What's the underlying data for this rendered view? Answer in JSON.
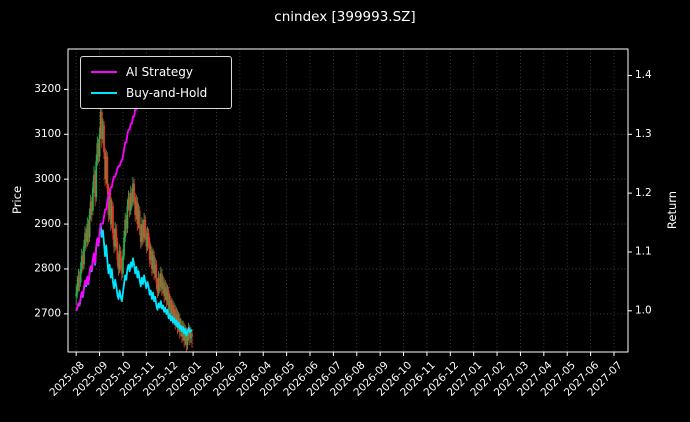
{
  "title": "cnindex [399993.SZ]",
  "axes": {
    "left_label": "Price",
    "right_label": "Return"
  },
  "legend": {
    "items": [
      {
        "label": "AI Strategy",
        "color": "#ff00ff"
      },
      {
        "label": "Buy-and-Hold",
        "color": "#00e5ff"
      }
    ]
  },
  "colors": {
    "background": "#000000",
    "text": "#ffffff",
    "spine": "#ffffff",
    "grid": "rgba(130,130,130,0.55)",
    "up": "#2fa94e",
    "down": "#e03a28"
  },
  "chart_data": {
    "type": "candlestick+line",
    "title": "cnindex [399993.SZ]",
    "ylabel_left": "Price",
    "ylabel_right": "Return",
    "price_ticks": [
      2700,
      2800,
      2900,
      3000,
      3100,
      3200
    ],
    "return_ticks": [
      1.0,
      1.1,
      1.2,
      1.3,
      1.4
    ],
    "x_tick_labels": [
      "2025-08",
      "2025-09",
      "2025-10",
      "2025-11",
      "2025-12",
      "2026-01",
      "2026-02",
      "2026-03",
      "2026-04",
      "2026-05",
      "2026-06",
      "2026-07",
      "2026-08",
      "2026-09",
      "2026-10",
      "2026-11",
      "2026-12",
      "2027-01",
      "2027-02",
      "2027-03",
      "2027-04",
      "2027-05",
      "2027-06",
      "2027-07"
    ],
    "x_lim": [
      -0.35,
      23.6
    ],
    "price_lim": [
      2615,
      3290
    ],
    "return_lim": [
      0.93,
      1.445
    ],
    "grid": "dotted",
    "legend_position": "upper-left",
    "days_per_month": 21,
    "x_unit": "months since 2025-08, candle i at x = i / days_per_month",
    "candles_format": [
      "open",
      "high",
      "low",
      "close"
    ],
    "candles": [
      [
        2740,
        2765,
        2720,
        2745
      ],
      [
        2745,
        2785,
        2735,
        2760
      ],
      [
        2760,
        2800,
        2750,
        2780
      ],
      [
        2780,
        2795,
        2750,
        2770
      ],
      [
        2770,
        2815,
        2760,
        2800
      ],
      [
        2800,
        2845,
        2790,
        2830
      ],
      [
        2830,
        2840,
        2795,
        2810
      ],
      [
        2810,
        2865,
        2800,
        2850
      ],
      [
        2850,
        2895,
        2840,
        2880
      ],
      [
        2880,
        2890,
        2845,
        2860
      ],
      [
        2860,
        2915,
        2850,
        2900
      ],
      [
        2900,
        2910,
        2855,
        2870
      ],
      [
        2870,
        2935,
        2860,
        2920
      ],
      [
        2920,
        2965,
        2910,
        2950
      ],
      [
        2950,
        2960,
        2905,
        2930
      ],
      [
        2930,
        2995,
        2920,
        2980
      ],
      [
        2980,
        3030,
        2970,
        3010
      ],
      [
        3010,
        3020,
        2940,
        2960
      ],
      [
        2960,
        3055,
        2950,
        3040
      ],
      [
        3040,
        3095,
        3030,
        3080
      ],
      [
        3080,
        3090,
        3035,
        3050
      ],
      [
        3050,
        3115,
        3040,
        3100
      ],
      [
        3100,
        3165,
        3090,
        3150
      ],
      [
        3150,
        3160,
        3070,
        3090
      ],
      [
        3090,
        3135,
        3080,
        3120
      ],
      [
        3120,
        3130,
        3045,
        3060
      ],
      [
        3060,
        3070,
        2985,
        3000
      ],
      [
        3000,
        3065,
        2990,
        3050
      ],
      [
        3050,
        3060,
        2965,
        2980
      ],
      [
        2980,
        2990,
        2905,
        2920
      ],
      [
        2920,
        2975,
        2910,
        2960
      ],
      [
        2960,
        2970,
        2885,
        2900
      ],
      [
        2900,
        2955,
        2890,
        2940
      ],
      [
        2940,
        2950,
        2865,
        2880
      ],
      [
        2880,
        2890,
        2835,
        2850
      ],
      [
        2850,
        2905,
        2840,
        2890
      ],
      [
        2890,
        2900,
        2845,
        2860
      ],
      [
        2860,
        2870,
        2805,
        2820
      ],
      [
        2820,
        2835,
        2785,
        2800
      ],
      [
        2800,
        2855,
        2790,
        2840
      ],
      [
        2840,
        2850,
        2795,
        2810
      ],
      [
        2810,
        2825,
        2775,
        2790
      ],
      [
        2790,
        2845,
        2780,
        2830
      ],
      [
        2830,
        2885,
        2820,
        2870
      ],
      [
        2870,
        2925,
        2860,
        2910
      ],
      [
        2910,
        2920,
        2875,
        2890
      ],
      [
        2890,
        2955,
        2880,
        2940
      ],
      [
        2940,
        2975,
        2930,
        2960
      ],
      [
        2960,
        2970,
        2915,
        2930
      ],
      [
        2930,
        2985,
        2920,
        2970
      ],
      [
        2970,
        2980,
        2935,
        2950
      ],
      [
        2950,
        3005,
        2940,
        2990
      ],
      [
        2990,
        3000,
        2945,
        2960
      ],
      [
        2960,
        2970,
        2905,
        2920
      ],
      [
        2920,
        2965,
        2910,
        2950
      ],
      [
        2950,
        2960,
        2885,
        2900
      ],
      [
        2900,
        2945,
        2890,
        2930
      ],
      [
        2930,
        2940,
        2875,
        2890
      ],
      [
        2890,
        2900,
        2845,
        2860
      ],
      [
        2860,
        2915,
        2850,
        2900
      ],
      [
        2900,
        2910,
        2855,
        2870
      ],
      [
        2870,
        2925,
        2860,
        2910
      ],
      [
        2910,
        2920,
        2865,
        2880
      ],
      [
        2880,
        2890,
        2835,
        2850
      ],
      [
        2850,
        2895,
        2840,
        2880
      ],
      [
        2880,
        2890,
        2845,
        2860
      ],
      [
        2860,
        2870,
        2805,
        2820
      ],
      [
        2820,
        2855,
        2810,
        2840
      ],
      [
        2840,
        2850,
        2785,
        2800
      ],
      [
        2800,
        2845,
        2790,
        2830
      ],
      [
        2830,
        2840,
        2775,
        2790
      ],
      [
        2790,
        2825,
        2780,
        2810
      ],
      [
        2810,
        2820,
        2755,
        2770
      ],
      [
        2770,
        2780,
        2735,
        2750
      ],
      [
        2750,
        2795,
        2740,
        2780
      ],
      [
        2780,
        2790,
        2745,
        2760
      ],
      [
        2760,
        2805,
        2750,
        2790
      ],
      [
        2790,
        2800,
        2740,
        2755
      ],
      [
        2755,
        2785,
        2745,
        2770
      ],
      [
        2770,
        2780,
        2725,
        2740
      ],
      [
        2740,
        2775,
        2730,
        2760
      ],
      [
        2760,
        2770,
        2715,
        2730
      ],
      [
        2730,
        2765,
        2720,
        2750
      ],
      [
        2750,
        2760,
        2695,
        2710
      ],
      [
        2710,
        2745,
        2700,
        2730
      ],
      [
        2730,
        2740,
        2685,
        2700
      ],
      [
        2700,
        2735,
        2690,
        2720
      ],
      [
        2720,
        2730,
        2675,
        2690
      ],
      [
        2690,
        2725,
        2680,
        2710
      ],
      [
        2710,
        2720,
        2665,
        2680
      ],
      [
        2680,
        2715,
        2670,
        2700
      ],
      [
        2700,
        2710,
        2655,
        2670
      ],
      [
        2670,
        2705,
        2660,
        2690
      ],
      [
        2690,
        2700,
        2645,
        2660
      ],
      [
        2660,
        2690,
        2650,
        2675
      ],
      [
        2675,
        2685,
        2635,
        2650
      ],
      [
        2650,
        2685,
        2640,
        2670
      ],
      [
        2670,
        2680,
        2625,
        2640
      ],
      [
        2640,
        2675,
        2630,
        2660
      ],
      [
        2660,
        2670,
        2615,
        2630
      ],
      [
        2630,
        2665,
        2620,
        2650
      ],
      [
        2650,
        2680,
        2640,
        2665
      ],
      [
        2665,
        2675,
        2630,
        2645
      ],
      [
        2645,
        2670,
        2635,
        2655
      ],
      [
        2655,
        2665,
        2625,
        2650
      ]
    ],
    "buy_hold_base_close": 2745,
    "series": [
      {
        "name": "AI Strategy",
        "color": "#ff00ff",
        "axis": "return",
        "values": [
          1.0,
          1.005,
          1.013,
          1.01,
          1.021,
          1.032,
          1.025,
          1.04,
          1.051,
          1.044,
          1.058,
          1.047,
          1.065,
          1.076,
          1.069,
          1.087,
          1.098,
          1.08,
          1.109,
          1.123,
          1.112,
          1.13,
          1.148,
          1.148,
          1.148,
          1.16,
          1.172,
          1.172,
          1.186,
          1.198,
          1.198,
          1.21,
          1.21,
          1.222,
          1.228,
          1.228,
          1.234,
          1.242,
          1.246,
          1.246,
          1.252,
          1.256,
          1.262,
          1.274,
          1.286,
          1.286,
          1.3,
          1.308,
          1.308,
          1.318,
          1.318,
          1.33,
          1.33,
          1.342,
          1.342,
          1.355,
          1.355,
          1.366,
          1.374,
          1.374,
          1.38,
          1.386,
          1.386,
          1.392,
          1.392,
          1.398,
          1.402,
          1.402,
          1.406,
          1.406,
          1.41,
          1.41,
          1.41,
          1.41,
          1.41,
          1.41,
          1.41,
          1.41,
          1.41,
          1.41,
          1.41,
          1.41,
          1.41,
          1.41,
          1.41,
          1.41,
          1.41,
          1.41,
          1.41,
          1.41,
          1.41,
          1.41,
          1.41,
          1.41,
          1.41,
          1.41,
          1.41,
          1.41,
          1.41,
          1.41,
          1.41,
          1.41,
          1.41,
          1.41,
          1.41
        ]
      },
      {
        "name": "Buy-and-Hold",
        "color": "#00e5ff",
        "axis": "return",
        "derivation": "close / buy_hold_base_close"
      }
    ]
  }
}
